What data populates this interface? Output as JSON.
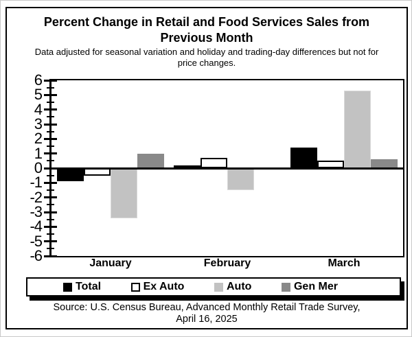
{
  "header": {
    "title_line1": "Percent Change in Retail and Food Services Sales from",
    "title_line2": "Previous Month",
    "subtitle_line1": "Data adjusted for seasonal variation and holiday and trading-day differences but not for",
    "subtitle_line2": "price changes."
  },
  "chart_data": {
    "type": "bar",
    "title": "Percent Change in Retail and Food Services Sales from Previous Month",
    "categories": [
      "January",
      "February",
      "March"
    ],
    "series": [
      {
        "name": "Total",
        "color": "#000000",
        "border": "#000000",
        "values": [
          -0.9,
          0.2,
          1.4
        ]
      },
      {
        "name": "Ex Auto",
        "color": "#ffffff",
        "border": "#000000",
        "values": [
          -0.5,
          0.7,
          0.5
        ]
      },
      {
        "name": "Auto",
        "color": "#c2c2c2",
        "border": "#d9d9d9",
        "values": [
          -3.4,
          -1.5,
          5.3
        ]
      },
      {
        "name": "Gen Mer",
        "color": "#898989",
        "border": "#898989",
        "values": [
          1.0,
          0.0,
          0.6
        ]
      }
    ],
    "xlabel": "",
    "ylabel": "",
    "ylim": [
      -6,
      6
    ],
    "yticks": [
      6,
      5,
      4,
      3,
      2,
      1,
      0,
      -1,
      -2,
      -3,
      -4,
      -5,
      -6
    ],
    "minor_tick_step": 0.5,
    "grid": false,
    "legend_position": "bottom"
  },
  "footer": {
    "source_line1": "Source: U.S. Census Bureau, Advanced Monthly Retail Trade Survey,",
    "source_line2": "April 16, 2025"
  }
}
